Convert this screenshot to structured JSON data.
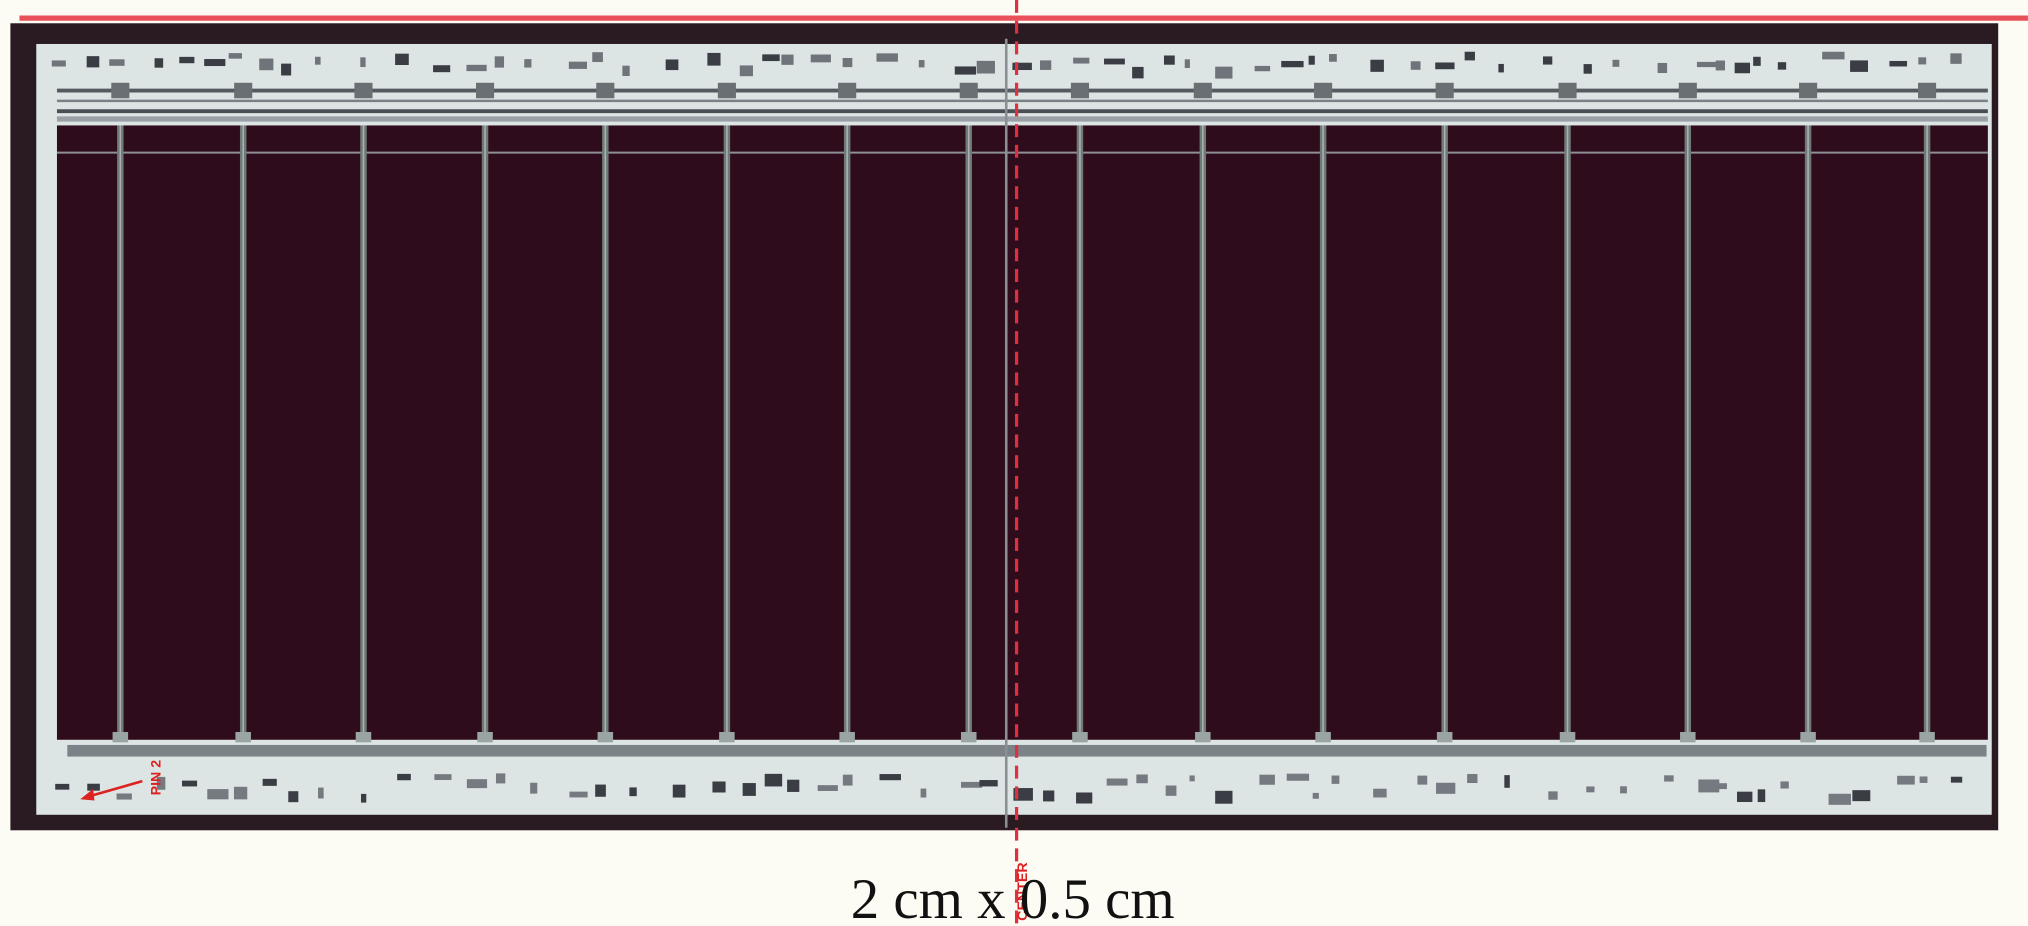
{
  "labels": {
    "pin": "PIN 2",
    "center": "CENTER"
  },
  "caption": "2 cm x 0.5 cm"
}
